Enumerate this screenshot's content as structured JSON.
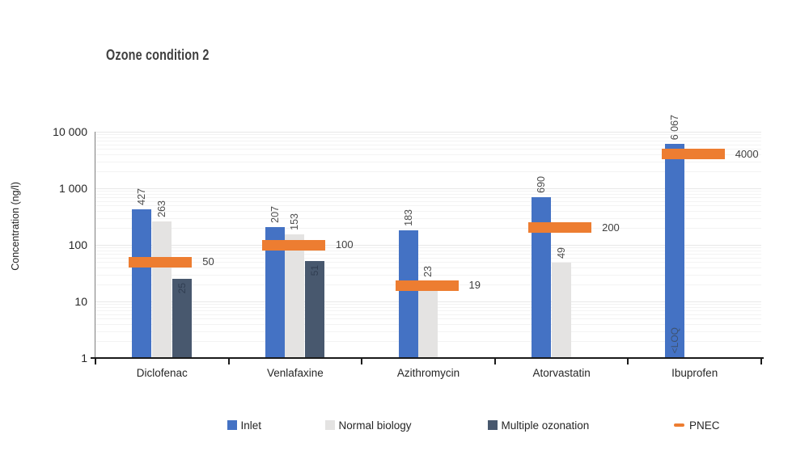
{
  "title": "Ozone condition 2",
  "y_axis": {
    "label": "Concentration (ng/l)"
  },
  "chart_data": {
    "type": "bar",
    "scale": "log-y",
    "title": "Ozone condition 2",
    "ylabel": "Concentration (ng/l)",
    "ylim": [
      1,
      10000
    ],
    "grid": "horizontal faint, log major + minor",
    "legend_position": "bottom",
    "y_tick_labels": [
      "10 000",
      "1 000",
      "100",
      "10",
      "1"
    ],
    "y_tick_values": [
      10000,
      1000,
      100,
      10,
      1
    ],
    "categories": [
      "Diclofenac",
      "Venlafaxine",
      "Azithromycin",
      "Atorvastatin",
      "Ibuprofen"
    ],
    "series": [
      {
        "name": "Inlet",
        "color": "#4472C4",
        "style": "bar",
        "values": [
          427,
          207,
          183,
          690,
          6067
        ],
        "labels": [
          "427",
          "207",
          "183",
          "690",
          "6 067"
        ]
      },
      {
        "name": "Normal biology",
        "color": "#E4E3E2",
        "style": "bar",
        "values": [
          263,
          153,
          23,
          49,
          null
        ],
        "labels": [
          "263",
          "153",
          "23",
          "49",
          "<LOQ"
        ]
      },
      {
        "name": "Multiple ozonation",
        "color": "#48586E",
        "style": "bar",
        "values": [
          25,
          51,
          null,
          null,
          null
        ],
        "labels": [
          "25",
          "51",
          "",
          "",
          ""
        ]
      },
      {
        "name": "PNEC",
        "color": "#ED7D31",
        "style": "band",
        "values": [
          50,
          100,
          19,
          200,
          4000
        ],
        "labels": [
          "50",
          "100",
          "19",
          "200",
          "4000"
        ]
      }
    ],
    "legend": [
      {
        "label": "Inlet",
        "color": "#4472C4",
        "marker": "square"
      },
      {
        "label": "Normal biology",
        "color": "#E4E3E2",
        "marker": "square"
      },
      {
        "label": "Multiple ozonation",
        "color": "#48586E",
        "marker": "square"
      },
      {
        "label": "PNEC",
        "color": "#ED7D31",
        "marker": "dash"
      }
    ]
  },
  "colors": {
    "inlet": "#4472C4",
    "normal_biology": "#E4E3E2",
    "multiple_ozonation": "#48586E",
    "pnec": "#ED7D31",
    "axis": "#1a1a1a",
    "text": "#262626"
  }
}
